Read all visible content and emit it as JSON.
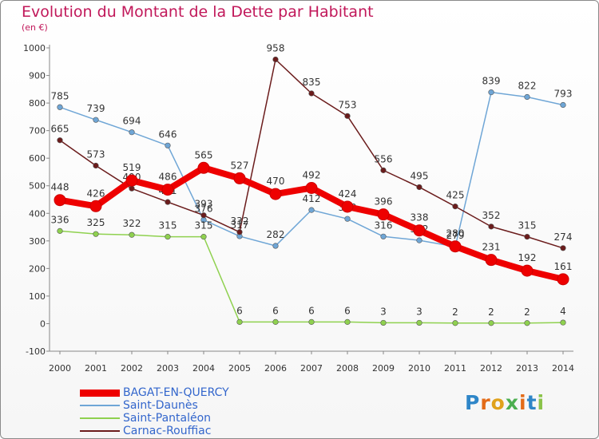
{
  "title": "Evolution du Montant de la Dette par Habitant",
  "subtitle": "(en €)",
  "logo_text": "Proxiti",
  "chart_data": {
    "type": "line",
    "title": "Evolution du Montant de la Dette par Habitant",
    "subtitle": "(en €)",
    "xlabel": "",
    "ylabel": "",
    "x": [
      "2000",
      "2001",
      "2002",
      "2003",
      "2004",
      "2005",
      "2006",
      "2007",
      "2008",
      "2009",
      "2010",
      "2011",
      "2012",
      "2013",
      "2014"
    ],
    "ylim": [
      -100,
      1000
    ],
    "yticks": [
      -100,
      0,
      100,
      200,
      300,
      400,
      500,
      600,
      700,
      800,
      900,
      1000
    ],
    "grid": false,
    "legend_position": "bottom-left",
    "series": [
      {
        "name": "BAGAT-EN-QUERCY",
        "color": "#ee0000",
        "values": [
          448,
          426,
          519,
          486,
          565,
          527,
          470,
          492,
          424,
          396,
          338,
          280,
          231,
          192,
          161
        ]
      },
      {
        "name": "Saint-Daunès",
        "color": "#6fa6d6",
        "values": [
          785,
          739,
          694,
          646,
          376,
          317,
          282,
          412,
          380,
          316,
          302,
          279,
          839,
          822,
          793
        ]
      },
      {
        "name": "Saint-Pantaléon",
        "color": "#8fd14f",
        "values": [
          336,
          325,
          322,
          315,
          315,
          6,
          6,
          6,
          6,
          3,
          3,
          2,
          2,
          2,
          4
        ]
      },
      {
        "name": "Carnac-Rouffiac",
        "color": "#6b1c1c",
        "values": [
          665,
          573,
          490,
          441,
          393,
          332,
          958,
          835,
          753,
          556,
          495,
          425,
          352,
          315,
          274
        ]
      }
    ]
  }
}
